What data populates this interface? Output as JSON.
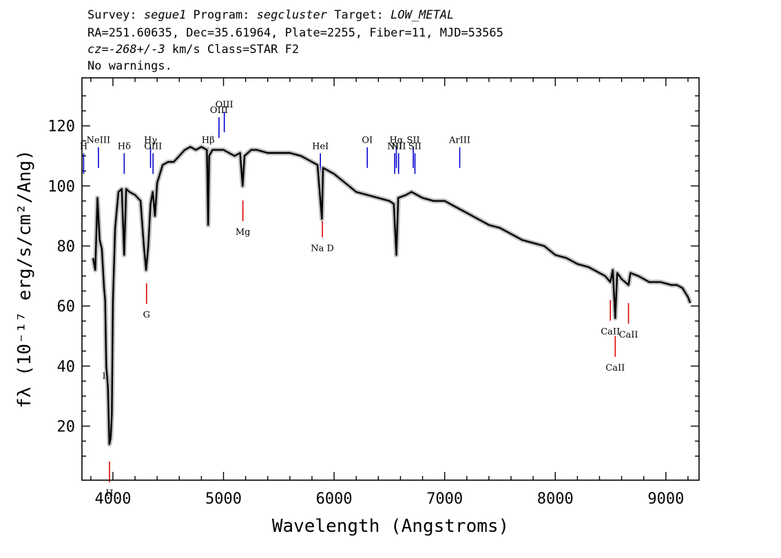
{
  "header": {
    "line1": {
      "survey_label": "Survey: ",
      "survey": "segue1",
      "program_label": " Program: ",
      "program": "segcluster",
      "target_label": " Target: ",
      "target": "LOW_METAL"
    },
    "line2": "RA=251.60635, Dec=35.61964, Plate=2255, Fiber=11, MJD=53565",
    "line3": {
      "cz": "cz=-268+/-3",
      "rest": " km/s Class=STAR F2"
    },
    "line4": "No warnings."
  },
  "chart_data": {
    "type": "line",
    "xlabel": "Wavelength (Angstroms)",
    "ylabel": "fλ (10⁻¹⁷ erg/s/cm²/Ang)",
    "xlim": [
      3720,
      9300
    ],
    "ylim": [
      2,
      136
    ],
    "x_ticks": [
      4000,
      5000,
      6000,
      7000,
      8000,
      9000
    ],
    "y_ticks": [
      20,
      40,
      60,
      80,
      100,
      120
    ],
    "series": [
      {
        "color": "#000000",
        "x": [
          3820,
          3840,
          3860,
          3880,
          3900,
          3920,
          3930,
          3940,
          3955,
          3968,
          3980,
          3990,
          4000,
          4020,
          4050,
          4080,
          4102,
          4120,
          4150,
          4200,
          4250,
          4280,
          4300,
          4320,
          4340,
          4360,
          4380,
          4400,
          4450,
          4500,
          4550,
          4600,
          4650,
          4700,
          4750,
          4800,
          4850,
          4861,
          4870,
          4900,
          4950,
          5000,
          5050,
          5100,
          5150,
          5173,
          5190,
          5250,
          5300,
          5400,
          5500,
          5600,
          5700,
          5800,
          5850,
          5890,
          5900,
          5950,
          6000,
          6100,
          6200,
          6300,
          6400,
          6500,
          6540,
          6563,
          6580,
          6650,
          6700,
          6800,
          6900,
          7000,
          7100,
          7200,
          7300,
          7400,
          7500,
          7600,
          7700,
          7800,
          7900,
          8000,
          8100,
          8200,
          8300,
          8400,
          8450,
          8498,
          8520,
          8542,
          8560,
          8600,
          8662,
          8680,
          8750,
          8850,
          8950,
          9050,
          9100,
          9150,
          9200,
          9220
        ],
        "values": [
          76,
          72,
          96,
          82,
          79,
          66,
          62,
          40,
          33,
          14,
          16,
          24,
          62,
          86,
          98,
          99,
          77,
          99,
          98,
          97,
          95,
          80,
          72,
          80,
          94,
          98,
          90,
          101,
          107,
          108,
          108,
          110,
          112,
          113,
          112,
          113,
          112,
          87,
          110,
          112,
          112,
          112,
          111,
          110,
          111,
          100,
          110,
          112,
          112,
          111,
          111,
          111,
          110,
          108,
          107,
          89,
          106,
          105,
          104,
          101,
          98,
          97,
          96,
          95,
          94,
          77,
          96,
          97,
          98,
          96,
          95,
          95,
          93,
          91,
          89,
          87,
          86,
          84,
          82,
          81,
          80,
          77,
          76,
          74,
          73,
          71,
          70,
          68,
          72,
          56,
          71,
          69,
          67,
          71,
          70,
          68,
          68,
          67,
          67,
          66,
          63,
          61
        ]
      }
    ],
    "emission_lines": [
      {
        "label": "H",
        "wavelength": 3735
      },
      {
        "label": "NeIII",
        "wavelength": 3869
      },
      {
        "label": "Hδ",
        "wavelength": 4102
      },
      {
        "label": "Hγ",
        "wavelength": 4340
      },
      {
        "label": "OIII",
        "wavelength": 4363
      },
      {
        "label": "Hβ",
        "wavelength": 4861
      },
      {
        "label": "OIII",
        "wavelength": 4959
      },
      {
        "label": "OIII",
        "wavelength": 5007
      },
      {
        "label": "HeI",
        "wavelength": 5876
      },
      {
        "label": "OI",
        "wavelength": 6300
      },
      {
        "label": "NII",
        "wavelength": 6548
      },
      {
        "label": "Hα",
        "wavelength": 6563
      },
      {
        "label": "NII",
        "wavelength": 6583
      },
      {
        "label": "SII",
        "wavelength": 6716
      },
      {
        "label": "SII",
        "wavelength": 6731
      },
      {
        "label": "ArIII",
        "wavelength": 7136
      }
    ],
    "absorption_lines": [
      {
        "label": "K",
        "wavelength": 3934
      },
      {
        "label": "H",
        "wavelength": 3969
      },
      {
        "label": "G",
        "wavelength": 4304
      },
      {
        "label": "Mg",
        "wavelength": 5175
      },
      {
        "label": "Na D",
        "wavelength": 5894
      },
      {
        "label": "CaII",
        "wavelength": 8498
      },
      {
        "label": "CaII",
        "wavelength": 8542
      },
      {
        "label": "CaII",
        "wavelength": 8662
      }
    ],
    "colors": {
      "spectrum": "#000000",
      "error_band": "#c0c0c0",
      "emission": "#0000cc",
      "absorption": "#dd0000"
    }
  }
}
